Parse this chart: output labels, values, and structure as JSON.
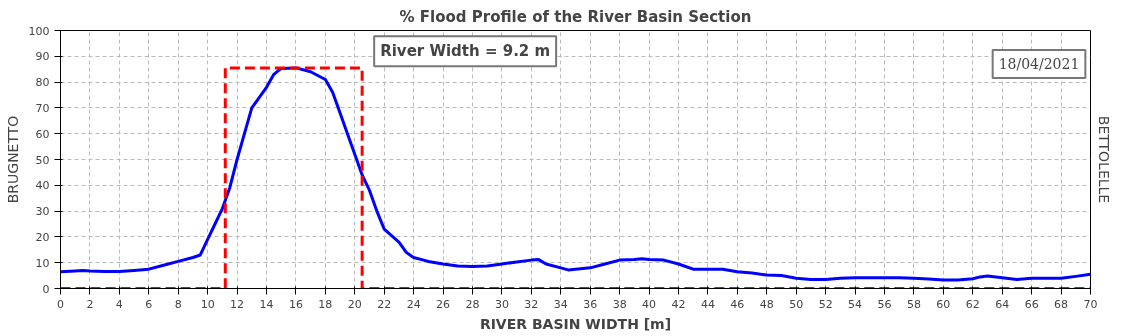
{
  "chart_data": {
    "type": "line",
    "title": "% Flood Profile of the River Basin Section",
    "xlabel": "RIVER BASIN WIDTH [m]",
    "ylabel": "BRUGNETTO",
    "y2label": "BETTOLELLE",
    "annotations": [
      "River Width = 9.2 m",
      "18/04/2021"
    ],
    "series": [
      {
        "color": "#0000ff",
        "line_style": "solid",
        "x": [
          0,
          1,
          1.5,
          2,
          3,
          4,
          5,
          6,
          7,
          8,
          9,
          9.5,
          10,
          10.5,
          11,
          11.5,
          12,
          12.5,
          13,
          13.5,
          14,
          14.5,
          15,
          16,
          17,
          18,
          18.5,
          19,
          19.5,
          20,
          20.5,
          21,
          21.5,
          22,
          23,
          23.5,
          24,
          25,
          26,
          27,
          28,
          29,
          30,
          31,
          32,
          32.5,
          33,
          34,
          34.5,
          35,
          36,
          37,
          38,
          39,
          39.5,
          40,
          41,
          42,
          43,
          44,
          45,
          46,
          47,
          48,
          49,
          50,
          51,
          52,
          53,
          54,
          55,
          56,
          57,
          58,
          59,
          60,
          61,
          62,
          62.5,
          63,
          64,
          65,
          66,
          67,
          68,
          69,
          70
        ],
        "values": [
          6.5,
          6.8,
          7,
          6.8,
          6.6,
          6.6,
          7,
          7.5,
          9,
          10.5,
          12,
          13,
          19,
          25,
          31,
          39,
          50,
          60,
          70,
          74,
          78,
          83,
          85.3,
          85.5,
          84,
          81,
          76,
          68,
          60,
          52,
          44,
          38,
          30,
          23,
          18,
          14,
          12,
          10.5,
          9.5,
          8.7,
          8.5,
          8.7,
          9.5,
          10.3,
          11,
          11.2,
          9.5,
          8,
          7.2,
          7.5,
          8,
          9.5,
          11,
          11.2,
          11.5,
          11.2,
          11,
          9.5,
          7.5,
          7.5,
          7.5,
          6.5,
          6,
          5.2,
          5,
          4,
          3.5,
          3.5,
          4,
          4.2,
          4.2,
          4.2,
          4.2,
          4,
          3.7,
          3.3,
          3.3,
          3.8,
          4.5,
          4.8,
          4.2,
          3.5,
          4,
          4,
          4,
          4.7,
          5.5
        ]
      },
      {
        "color": "#ff0000",
        "line_style": "dashed",
        "x": [
          0,
          11.2,
          11.2,
          20.5,
          20.5,
          70
        ],
        "values": [
          0,
          0,
          85.5,
          85.5,
          0,
          0
        ]
      }
    ],
    "xlim": [
      0,
      70
    ],
    "xticks": [
      0,
      2,
      4,
      6,
      8,
      10,
      12,
      14,
      16,
      18,
      20,
      22,
      24,
      26,
      28,
      30,
      32,
      34,
      36,
      38,
      40,
      42,
      44,
      46,
      48,
      50,
      52,
      54,
      56,
      58,
      60,
      62,
      64,
      66,
      68,
      70
    ],
    "ylim": [
      0,
      100
    ],
    "yticks": [
      0,
      10,
      20,
      30,
      40,
      50,
      60,
      70,
      80,
      90,
      100
    ],
    "grid": true
  }
}
